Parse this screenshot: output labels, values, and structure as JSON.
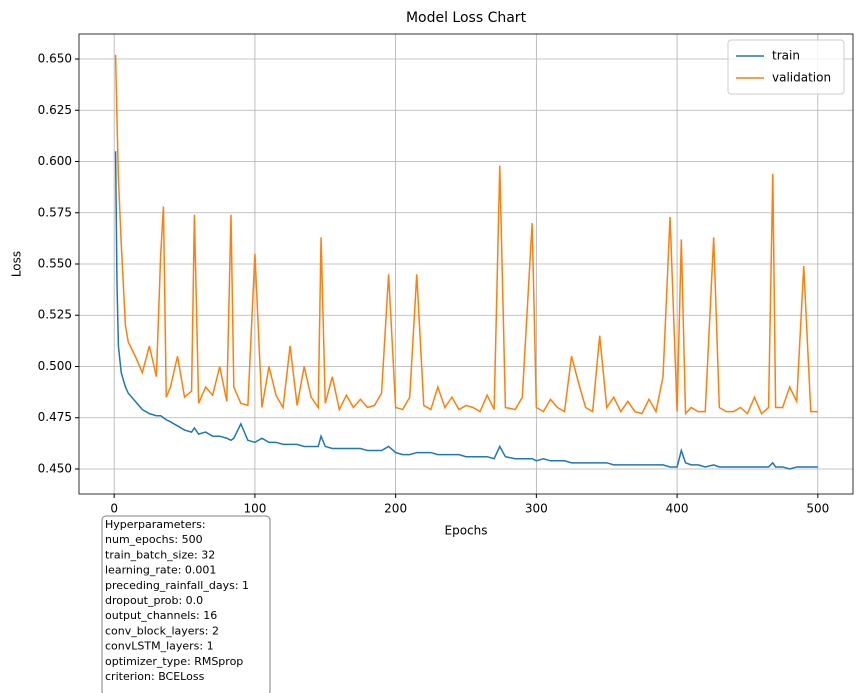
{
  "chart_data": {
    "type": "line",
    "title": "Model Loss Chart",
    "x_label": "Epochs",
    "y_label": "Loss",
    "x": [
      1,
      2,
      3,
      5,
      8,
      10,
      15,
      20,
      25,
      30,
      33,
      35,
      37,
      40,
      45,
      50,
      55,
      57,
      60,
      65,
      70,
      75,
      80,
      83,
      85,
      90,
      95,
      100,
      105,
      110,
      115,
      120,
      125,
      130,
      135,
      140,
      145,
      147,
      150,
      155,
      160,
      165,
      170,
      175,
      180,
      185,
      190,
      195,
      200,
      205,
      210,
      215,
      220,
      225,
      230,
      235,
      240,
      245,
      250,
      255,
      260,
      265,
      270,
      274,
      278,
      285,
      290,
      297,
      300,
      305,
      310,
      315,
      320,
      325,
      330,
      335,
      340,
      345,
      350,
      355,
      360,
      365,
      370,
      375,
      380,
      385,
      390,
      395,
      400,
      403,
      406,
      410,
      415,
      420,
      426,
      430,
      435,
      440,
      445,
      450,
      455,
      460,
      465,
      468,
      470,
      475,
      480,
      485,
      490,
      495,
      500
    ],
    "series": [
      {
        "name": "train",
        "color": "#1f77b4",
        "values": [
          0.605,
          0.54,
          0.51,
          0.497,
          0.49,
          0.487,
          0.483,
          0.479,
          0.477,
          0.476,
          0.476,
          0.475,
          0.474,
          0.473,
          0.471,
          0.469,
          0.468,
          0.47,
          0.467,
          0.468,
          0.466,
          0.466,
          0.465,
          0.464,
          0.465,
          0.472,
          0.464,
          0.463,
          0.465,
          0.463,
          0.463,
          0.462,
          0.462,
          0.462,
          0.461,
          0.461,
          0.461,
          0.466,
          0.461,
          0.46,
          0.46,
          0.46,
          0.46,
          0.46,
          0.459,
          0.459,
          0.459,
          0.461,
          0.458,
          0.457,
          0.457,
          0.458,
          0.458,
          0.458,
          0.457,
          0.457,
          0.457,
          0.457,
          0.456,
          0.456,
          0.456,
          0.456,
          0.455,
          0.461,
          0.456,
          0.455,
          0.455,
          0.455,
          0.454,
          0.455,
          0.454,
          0.454,
          0.454,
          0.453,
          0.453,
          0.453,
          0.453,
          0.453,
          0.453,
          0.452,
          0.452,
          0.452,
          0.452,
          0.452,
          0.452,
          0.452,
          0.452,
          0.451,
          0.451,
          0.459,
          0.453,
          0.452,
          0.452,
          0.451,
          0.452,
          0.451,
          0.451,
          0.451,
          0.451,
          0.451,
          0.451,
          0.451,
          0.451,
          0.453,
          0.451,
          0.451,
          0.45,
          0.451,
          0.451,
          0.451,
          0.451
        ]
      },
      {
        "name": "validation",
        "color": "#ff7f0e",
        "values": [
          0.652,
          0.62,
          0.592,
          0.56,
          0.52,
          0.512,
          0.505,
          0.497,
          0.51,
          0.495,
          0.554,
          0.578,
          0.485,
          0.49,
          0.505,
          0.485,
          0.488,
          0.574,
          0.482,
          0.49,
          0.486,
          0.5,
          0.483,
          0.574,
          0.49,
          0.482,
          0.481,
          0.555,
          0.48,
          0.5,
          0.486,
          0.48,
          0.51,
          0.481,
          0.5,
          0.485,
          0.48,
          0.563,
          0.482,
          0.495,
          0.479,
          0.486,
          0.48,
          0.484,
          0.48,
          0.481,
          0.487,
          0.545,
          0.48,
          0.479,
          0.485,
          0.545,
          0.481,
          0.479,
          0.49,
          0.48,
          0.485,
          0.479,
          0.481,
          0.48,
          0.478,
          0.486,
          0.479,
          0.598,
          0.48,
          0.479,
          0.485,
          0.57,
          0.48,
          0.478,
          0.484,
          0.48,
          0.478,
          0.505,
          0.492,
          0.48,
          0.478,
          0.515,
          0.48,
          0.485,
          0.478,
          0.483,
          0.478,
          0.477,
          0.484,
          0.478,
          0.495,
          0.573,
          0.478,
          0.562,
          0.477,
          0.48,
          0.478,
          0.478,
          0.563,
          0.48,
          0.478,
          0.478,
          0.48,
          0.477,
          0.485,
          0.477,
          0.48,
          0.594,
          0.48,
          0.48,
          0.49,
          0.483,
          0.549,
          0.478,
          0.478
        ]
      }
    ],
    "xlim": [
      -25,
      525
    ],
    "ylim": [
      0.4378,
      0.6622
    ],
    "xticks": [
      0,
      100,
      200,
      300,
      400,
      500
    ],
    "yticks": [
      {
        "value": 0.45,
        "label": "0.450"
      },
      0.475,
      {
        "value": 0.5,
        "label": "0.500"
      },
      0.525,
      {
        "value": 0.55,
        "label": "0.550"
      },
      0.575,
      {
        "value": 0.6,
        "label": "0.600"
      },
      0.625,
      {
        "value": 0.65,
        "label": "0.650"
      }
    ],
    "grid": true,
    "legend": "upper right",
    "annotation": [
      "Hyperparameters:",
      "num_epochs: 500",
      "train_batch_size: 32",
      "learning_rate: 0.001",
      "preceding_rainfall_days: 1",
      "dropout_prob: 0.0",
      "output_channels: 16",
      "conv_block_layers: 2",
      "convLSTM_layers: 1",
      "optimizer_type: RMSprop",
      "criterion: BCELoss"
    ]
  }
}
